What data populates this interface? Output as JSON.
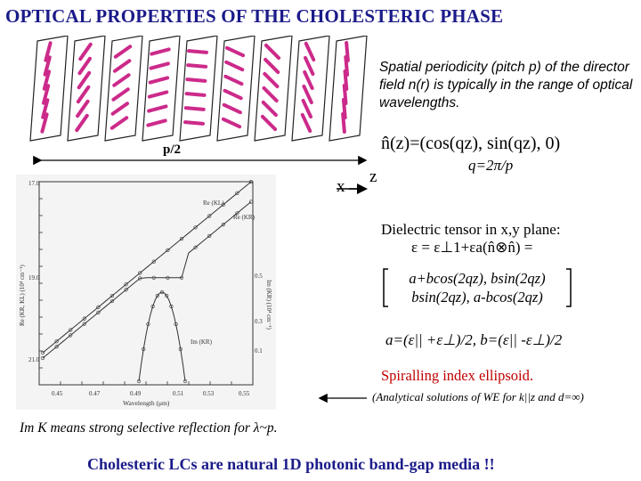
{
  "title": "OPTICAL PROPERTIES OF THE CHOLESTERIC PHASE",
  "description": "Spatial periodicity (pitch p) of the director field n(r) is typically in the range of optical wavelengths.",
  "director_formula": "n̂(z)=(cos(qz), sin(qz), 0)",
  "pitch_half_label": "p/2",
  "axis_x_label": "x",
  "axis_z_label": "z",
  "q_formula": "q=2π/p",
  "dielectric": {
    "line1": "Dielectric tensor in x,y plane:",
    "line2": "ε = ε⊥1+εa(n̂⊗n̂) =",
    "matrix_row1": "a+bcos(2qz),  bsin(2qz)",
    "matrix_row2": "bsin(2qz),  a-bcos(2qz)",
    "ab_def": "a=(ε|| +ε⊥)/2, b=(ε|| -ε⊥)/2"
  },
  "spiralling": "Spiralling index ellipsoid.",
  "analytic": "(Analytical solutions of WE for k||z and d=∞)",
  "imk_note": "Im K means strong selective reflection for λ~p.",
  "conclusion": "Cholesteric LCs are natural 1D photonic band-gap media !!",
  "plot": {
    "left_ticks": [
      "17.0",
      "19.0",
      "21.0"
    ],
    "right_ticks": [
      "0.5",
      "0.3",
      "0.1"
    ],
    "x_ticks": [
      "0.45",
      "0.47",
      "0.49",
      "0.51",
      "0.53",
      "0.55"
    ],
    "xlabel": "Wavelength (μm)",
    "ylabel_left": "Re (KR, KL) (10⁴ cm⁻¹)",
    "ylabel_right": "Im (KR) (10⁴ cm⁻¹)",
    "label_re_kl": "Re (KL)",
    "label_re_kr": "Re (KR)",
    "label_im_kr": "Im (KR)"
  },
  "colors": {
    "title": "#1b1b8a",
    "spiral": "#c00000",
    "rods": "#cc2a8a"
  }
}
